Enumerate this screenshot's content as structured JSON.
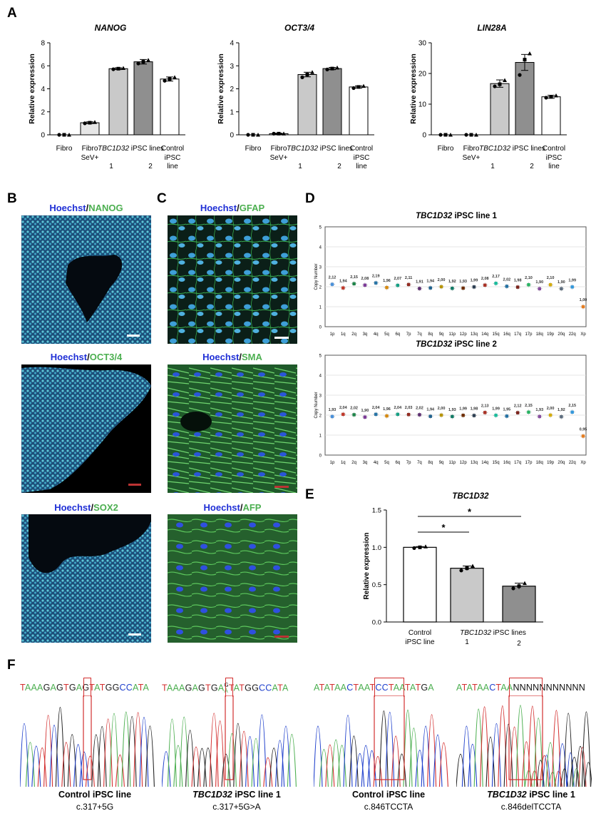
{
  "panels": {
    "A": "A",
    "B": "B",
    "C": "C",
    "D": "D",
    "E": "E",
    "F": "F"
  },
  "chart_data": [
    {
      "type": "bar",
      "panel": "A",
      "title": "NANOG",
      "ylabel": "Relative expression",
      "ylim": [
        0,
        8
      ],
      "yticks": [
        "0",
        "2",
        "4",
        "6",
        "8"
      ],
      "categories": [
        "Fibro",
        "Fibro SeV+",
        "TBC1D32 iPSC line 1",
        "TBC1D32 iPSC line 2",
        "Control iPSC line"
      ],
      "values": [
        0.0,
        1.05,
        5.75,
        6.35,
        4.85
      ],
      "errors": [
        0,
        0.08,
        0.08,
        0.2,
        0.18
      ],
      "points": [
        [
          0,
          0,
          0
        ],
        [
          1.0,
          1.05,
          1.1
        ],
        [
          5.7,
          5.75,
          5.8
        ],
        [
          6.2,
          6.35,
          6.5
        ],
        [
          4.7,
          4.85,
          5.0
        ]
      ],
      "colors": [
        "#ffffff",
        "#e6e6e6",
        "#c9c9c9",
        "#8f8f8f",
        "#ffffff"
      ]
    },
    {
      "type": "bar",
      "panel": "A",
      "title": "OCT3/4",
      "ylabel": "Relative expression",
      "ylim": [
        0,
        4
      ],
      "yticks": [
        "0",
        "1",
        "2",
        "3",
        "4"
      ],
      "categories": [
        "Fibro",
        "Fibro SeV+",
        "TBC1D32 iPSC line 1",
        "TBC1D32 iPSC line 2",
        "Control iPSC line"
      ],
      "values": [
        0.0,
        0.05,
        2.62,
        2.88,
        2.08
      ],
      "errors": [
        0,
        0.02,
        0.1,
        0.05,
        0.05
      ],
      "points": [
        [
          0,
          0,
          0
        ],
        [
          0.05,
          0.05,
          0.05
        ],
        [
          2.5,
          2.62,
          2.72
        ],
        [
          2.84,
          2.88,
          2.92
        ],
        [
          2.03,
          2.08,
          2.12
        ]
      ],
      "colors": [
        "#ffffff",
        "#e6e6e6",
        "#c9c9c9",
        "#8f8f8f",
        "#ffffff"
      ]
    },
    {
      "type": "bar",
      "panel": "A",
      "title": "LIN28A",
      "ylabel": "Relative expression",
      "ylim": [
        0,
        30
      ],
      "yticks": [
        "0",
        "10",
        "20",
        "30"
      ],
      "categories": [
        "Fibro",
        "Fibro SeV+",
        "TBC1D32 iPSC line 1",
        "TBC1D32 iPSC line 2",
        "Control iPSC line"
      ],
      "values": [
        0.0,
        0.0,
        16.7,
        23.6,
        12.4
      ],
      "errors": [
        0,
        0,
        1.2,
        2.6,
        0.5
      ],
      "points": [
        [
          0,
          0,
          0
        ],
        [
          0,
          0,
          0
        ],
        [
          15.8,
          16.5,
          17.8
        ],
        [
          19.5,
          24.5,
          26.5
        ],
        [
          12.1,
          12.4,
          12.8
        ]
      ],
      "colors": [
        "#ffffff",
        "#e6e6e6",
        "#c9c9c9",
        "#8f8f8f",
        "#ffffff"
      ]
    },
    {
      "type": "scatter",
      "panel": "D",
      "title_it": "TBC1D32",
      "title_rest": " iPSC line 1",
      "ylabel": "Copy Number",
      "ylim": [
        0,
        5
      ],
      "yticks": [
        "0",
        "1",
        "2",
        "3",
        "4",
        "5"
      ],
      "categories": [
        "1p",
        "1q",
        "2q",
        "3q",
        "4q",
        "5q",
        "6q",
        "7p",
        "7q",
        "8q",
        "9q",
        "11p",
        "12p",
        "13q",
        "14q",
        "15q",
        "16q",
        "17q",
        "17p",
        "18q",
        "19p",
        "20q",
        "22q",
        "Xp"
      ],
      "values": [
        2.12,
        1.94,
        2.15,
        2.08,
        2.19,
        1.96,
        2.07,
        2.11,
        1.91,
        1.94,
        2.0,
        1.92,
        1.93,
        1.99,
        2.08,
        2.17,
        2.02,
        1.98,
        2.1,
        1.9,
        2.1,
        1.9,
        1.99,
        1.0
      ],
      "value_labels": [
        "2,12",
        "1,94",
        "2,15",
        "2,08",
        "2,19",
        "1,96",
        "2,07",
        "2,11",
        "1,91",
        "1,94",
        "2,00",
        "1,92",
        "1,93",
        "1,99",
        "2,08",
        "2,17",
        "2,02",
        "1,98",
        "2,10",
        "1,90",
        "2,10",
        "1,90",
        "1,99",
        "1,00"
      ]
    },
    {
      "type": "scatter",
      "panel": "D",
      "title_it": "TBC1D32",
      "title_rest": " iPSC line 2",
      "ylabel": "Copy Number",
      "ylim": [
        0,
        5
      ],
      "yticks": [
        "0",
        "1",
        "2",
        "3",
        "4",
        "5"
      ],
      "categories": [
        "1p",
        "1q",
        "2q",
        "3q",
        "4q",
        "5q",
        "6q",
        "7p",
        "7q",
        "8q",
        "9q",
        "11p",
        "12p",
        "13q",
        "14q",
        "15q",
        "16q",
        "17q",
        "17p",
        "18q",
        "19p",
        "20q",
        "22q",
        "Xp"
      ],
      "values": [
        1.93,
        2.04,
        2.02,
        1.9,
        2.04,
        1.96,
        2.04,
        2.03,
        2.02,
        1.94,
        2.0,
        1.93,
        1.99,
        1.98,
        2.13,
        1.99,
        1.95,
        2.12,
        2.15,
        1.93,
        2.0,
        1.92,
        2.15,
        0.95
      ],
      "value_labels": [
        "1,93",
        "2,04",
        "2,02",
        "1,90",
        "2,04",
        "1,96",
        "2,04",
        "2,03",
        "2,02",
        "1,94",
        "2,00",
        "1,93",
        "1,99",
        "1,98",
        "2,13",
        "1,99",
        "1,95",
        "2,12",
        "2,15",
        "1,93",
        "2,00",
        "1,92",
        "2,15",
        "0,95"
      ]
    },
    {
      "type": "bar",
      "panel": "E",
      "title": "TBC1D32",
      "ylabel": "Relative expression",
      "ylim": [
        0,
        1.5
      ],
      "yticks": [
        "0.0",
        "0.5",
        "1.0",
        "1.5"
      ],
      "categories": [
        "Control iPSC line",
        "TBC1D32 iPSC line 1",
        "TBC1D32 iPSC line 2"
      ],
      "values": [
        1.0,
        0.72,
        0.48
      ],
      "errors": [
        0.01,
        0.03,
        0.04
      ],
      "points": [
        [
          0.99,
          1.0,
          1.01
        ],
        [
          0.69,
          0.72,
          0.75
        ],
        [
          0.45,
          0.48,
          0.52
        ]
      ],
      "colors": [
        "#ffffff",
        "#c9c9c9",
        "#8f8f8f"
      ],
      "significance": [
        "*",
        "*"
      ]
    }
  ],
  "a_xlabels": {
    "fibro": "Fibro",
    "sev_1": "Fibro",
    "sev_2": "SeV+",
    "tbc_it": "TBC1D32",
    "tbc_rest": " iPSC lines",
    "num1": "1",
    "num2": "2",
    "ctrl_1": "Control",
    "ctrl_2": "iPSC",
    "ctrl_3": "line"
  },
  "e_xlabels": {
    "ctrl_1": "Control",
    "ctrl_2": "iPSC line",
    "tbc_it": "TBC1D32",
    "tbc_rest": " iPSC lines",
    "num1": "1",
    "num2": "2"
  },
  "micrographs": {
    "b1": {
      "stain": "NANOG"
    },
    "b2": {
      "stain": "OCT3/4"
    },
    "b3": {
      "stain": "SOX2"
    },
    "c1": {
      "stain": "GFAP"
    },
    "c2": {
      "stain": "SMA"
    },
    "c3": {
      "stain": "AFP"
    },
    "hoechst": "Hoechst",
    "slash": "/"
  },
  "sanger": [
    {
      "seq": "TAAAGAGTGAGTATGGCCATA",
      "caption_it": "",
      "caption_b": "Control iPSC line",
      "mutation": "c.317+5G"
    },
    {
      "seq": "TAAAGAGTGA",
      "sup": "G",
      "sub": "A",
      "seq_tail": "TATGGCCATA",
      "caption_it": "TBC1D32",
      "caption_b": " iPSC line 1",
      "mutation": "c.317+5G>A"
    },
    {
      "seq": "ATATAACTAATCCTAATATGA",
      "caption_it": "",
      "caption_b": "Control iPSC line",
      "mutation": "c.846TCCTA"
    },
    {
      "seq": "ATATAACTAA",
      "seq_tail": "NNNNNNNNNNN",
      "caption_it": "TBC1D32",
      "caption_b": " iPSC line 1",
      "mutation": "c.846delTCCTA"
    }
  ],
  "colors": {
    "base_A": "#4caf50",
    "base_T": "#d32f2f",
    "base_G": "#222222",
    "base_C": "#1e3fcc",
    "base_N": "#111111",
    "highlight": "#d32f2f"
  }
}
